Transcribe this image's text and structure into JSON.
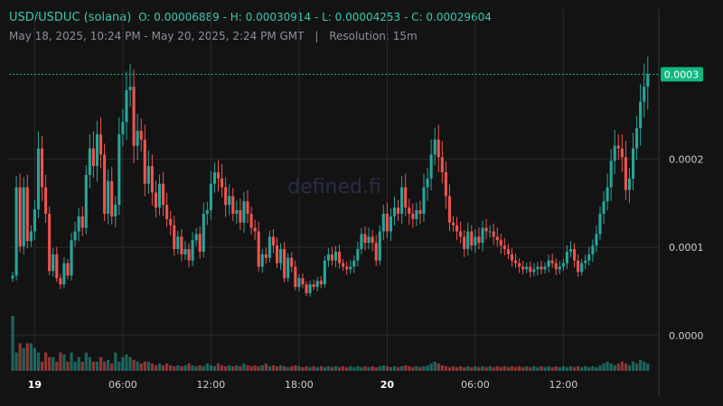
{
  "header": {
    "pair": "USD/USDUC (solana)",
    "ohlc": "O: 0.00006889 - H: 0.00030914 - L: 0.00004253 - C: 0.00029604",
    "range": "May 18, 2025, 10:24 PM - May 20, 2025, 2:24 PM GMT",
    "separator": "|",
    "resolution": "Resolution: 15m"
  },
  "watermark": "defined.fi",
  "colors": {
    "up": "#26a69a",
    "down": "#ef5350",
    "background": "#131313",
    "price_tag": "#10b981"
  },
  "chart_data": {
    "type": "candlestick",
    "xlabel": "",
    "ylabel": "",
    "ylim": [
      -4e-05,
      0.00037
    ],
    "y_ticks": [
      {
        "value": 0,
        "label": "0.0000"
      },
      {
        "value": 0.0001,
        "label": "0.0001"
      },
      {
        "value": 0.0002,
        "label": "0.0002"
      }
    ],
    "x_ticks": [
      {
        "pos": 6,
        "label": "19",
        "bold": true
      },
      {
        "pos": 30,
        "label": "06:00",
        "bold": false
      },
      {
        "pos": 54,
        "label": "12:00",
        "bold": false
      },
      {
        "pos": 78,
        "label": "18:00",
        "bold": false
      },
      {
        "pos": 102,
        "label": "20",
        "bold": true
      },
      {
        "pos": 126,
        "label": "06:00",
        "bold": false
      },
      {
        "pos": 150,
        "label": "12:00",
        "bold": false
      }
    ],
    "last_price": {
      "value": 0.000296,
      "label": "0.0003"
    },
    "candles_close": [
      6.8e-05,
      0.000168,
      0.000101,
      0.000168,
      0.000107,
      0.000118,
      0.000143,
      0.000212,
      0.000168,
      0.000138,
      7.3e-05,
      9.2e-05,
      6.5e-05,
      5.8e-05,
      8.2e-05,
      6.8e-05,
      0.000108,
      0.000118,
      0.000135,
      0.000122,
      0.000182,
      0.000212,
      0.000192,
      0.000228,
      0.000205,
      0.000138,
      0.000175,
      0.000135,
      0.000148,
      0.000228,
      0.000242,
      0.000278,
      0.000282,
      0.000215,
      0.000232,
      0.000222,
      0.000172,
      0.000192,
      0.000162,
      0.000145,
      0.000172,
      0.000148,
      0.000132,
      0.000125,
      9.8e-05,
      0.000112,
      9.2e-05,
      9.8e-05,
      8.5e-05,
      0.000108,
      0.000115,
      9.5e-05,
      0.000138,
      0.000142,
      0.000172,
      0.000185,
      0.000178,
      0.000168,
      0.000148,
      0.000158,
      0.000138,
      0.000142,
      0.000128,
      0.000152,
      0.000138,
      0.000122,
      0.000118,
      7.8e-05,
      9.2e-05,
      8.8e-05,
      0.000112,
      0.000102,
      8.2e-05,
      9.8e-05,
      6.5e-05,
      8.8e-05,
      7.8e-05,
      5.5e-05,
      6.5e-05,
      5.8e-05,
      4.8e-05,
      5.8e-05,
      5.5e-05,
      6.2e-05,
      5.8e-05,
      8.5e-05,
      9.2e-05,
      8.5e-05,
      9.5e-05,
      8.2e-05,
      7.8e-05,
      7.5e-05,
      7.8e-05,
      8.5e-05,
      9.8e-05,
      0.000115,
      0.000105,
      0.000112,
      0.000105,
      8.5e-05,
      0.000118,
      0.000138,
      0.000118,
      0.000135,
      0.000145,
      0.000138,
      0.000168,
      0.000145,
      0.000138,
      0.000132,
      0.000142,
      0.000138,
      0.000168,
      0.000178,
      0.000205,
      0.000222,
      0.000202,
      0.000185,
      0.000158,
      0.000128,
      0.000125,
      0.000118,
      0.000112,
      9.8e-05,
      0.000118,
      0.000102,
      0.000112,
      0.000105,
      0.000122,
      0.000118,
      0.000118,
      0.000112,
      0.000108,
      0.000102,
      9.8e-05,
      9.2e-05,
      8.5e-05,
      8.2e-05,
      7.8e-05,
      7.5e-05,
      7.8e-05,
      7.2e-05,
      7.5e-05,
      7.8e-05,
      7.5e-05,
      7.8e-05,
      8.5e-05,
      8.2e-05,
      7.5e-05,
      7.8e-05,
      8.2e-05,
      9.5e-05,
      9.8e-05,
      8.5e-05,
      7.2e-05,
      8.2e-05,
      8.5e-05,
      9.2e-05,
      0.000102,
      0.000115,
      0.000138,
      0.000152,
      0.000168,
      0.000198,
      0.000215,
      0.000212,
      0.000202,
      0.000165,
      0.000178,
      0.000212,
      0.000235,
      0.000265,
      0.000282,
      0.000296
    ],
    "volumes": [
      0.06,
      0.02,
      0.03,
      0.025,
      0.03,
      0.03,
      0.025,
      0.02,
      0.01,
      0.02,
      0.015,
      0.015,
      0.01,
      0.02,
      0.018,
      0.01,
      0.02,
      0.01,
      0.015,
      0.01,
      0.02,
      0.015,
      0.01,
      0.01,
      0.015,
      0.01,
      0.012,
      0.008,
      0.02,
      0.01,
      0.015,
      0.018,
      0.015,
      0.012,
      0.01,
      0.008,
      0.01,
      0.01,
      0.008,
      0.006,
      0.008,
      0.006,
      0.008,
      0.006,
      0.005,
      0.006,
      0.005,
      0.006,
      0.008,
      0.006,
      0.005,
      0.006,
      0.005,
      0.008,
      0.006,
      0.005,
      0.008,
      0.006,
      0.005,
      0.006,
      0.005,
      0.006,
      0.005,
      0.008,
      0.006,
      0.005,
      0.006,
      0.005,
      0.006,
      0.008,
      0.005,
      0.006,
      0.005,
      0.006,
      0.005,
      0.004,
      0.005,
      0.006,
      0.005,
      0.004,
      0.005,
      0.004,
      0.005,
      0.004,
      0.005,
      0.004,
      0.005,
      0.004,
      0.005,
      0.004,
      0.005,
      0.004,
      0.005,
      0.004,
      0.005,
      0.004,
      0.005,
      0.004,
      0.005,
      0.004,
      0.005,
      0.006,
      0.005,
      0.004,
      0.005,
      0.004,
      0.005,
      0.006,
      0.005,
      0.004,
      0.005,
      0.004,
      0.005,
      0.006,
      0.008,
      0.01,
      0.008,
      0.006,
      0.005,
      0.004,
      0.005,
      0.004,
      0.005,
      0.004,
      0.005,
      0.004,
      0.005,
      0.004,
      0.005,
      0.004,
      0.005,
      0.004,
      0.005,
      0.004,
      0.005,
      0.004,
      0.005,
      0.004,
      0.005,
      0.004,
      0.005,
      0.004,
      0.005,
      0.004,
      0.005,
      0.004,
      0.005,
      0.004,
      0.005,
      0.004,
      0.005,
      0.004,
      0.005,
      0.004,
      0.005,
      0.004,
      0.005,
      0.004,
      0.005,
      0.004,
      0.006,
      0.008,
      0.01,
      0.008,
      0.006,
      0.008,
      0.01,
      0.008,
      0.006,
      0.01,
      0.008,
      0.012,
      0.01,
      0.008
    ]
  }
}
